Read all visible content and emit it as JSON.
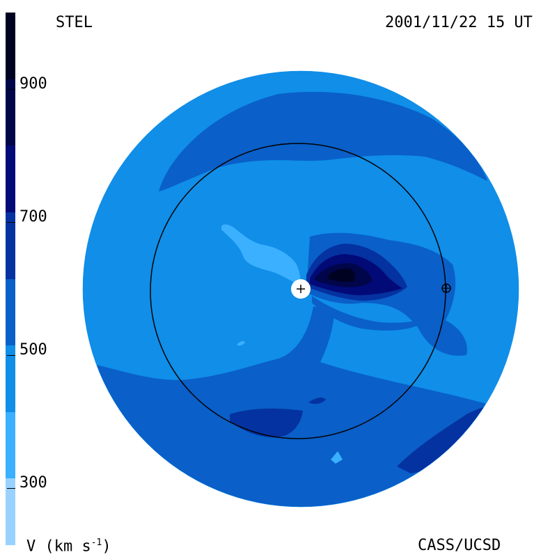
{
  "header": {
    "observatory": "STEL",
    "timestamp": "2001/11/22 15 UT"
  },
  "footer": {
    "units_label": "V (km s",
    "units_exp": "-1",
    "units_close": ")",
    "credit": "CASS/UCSD"
  },
  "chart_data": {
    "type": "heatmap",
    "title": "",
    "variable": "V (km s-1)",
    "colorbar": {
      "range": [
        200,
        1000
      ],
      "bands": [
        {
          "from": 200,
          "to": 300,
          "color": "#99d2ff"
        },
        {
          "from": 300,
          "to": 400,
          "color": "#3ab0ff"
        },
        {
          "from": 400,
          "to": 500,
          "color": "#108ee8"
        },
        {
          "from": 500,
          "to": 600,
          "color": "#0a5fc8"
        },
        {
          "from": 600,
          "to": 700,
          "color": "#0432a0"
        },
        {
          "from": 700,
          "to": 800,
          "color": "#020a78"
        },
        {
          "from": 800,
          "to": 900,
          "color": "#01054a"
        },
        {
          "from": 900,
          "to": 1000,
          "color": "#000222"
        }
      ],
      "tick_labels": [
        {
          "value": 300,
          "text": "300"
        },
        {
          "value": 500,
          "text": "500"
        },
        {
          "value": 700,
          "text": "700"
        },
        {
          "value": 900,
          "text": "900"
        }
      ]
    },
    "markers": [
      {
        "name": "sun",
        "symbol": "+"
      },
      {
        "name": "earth",
        "symbol": "⊕"
      }
    ],
    "orbit_circle": true,
    "grid": false
  }
}
